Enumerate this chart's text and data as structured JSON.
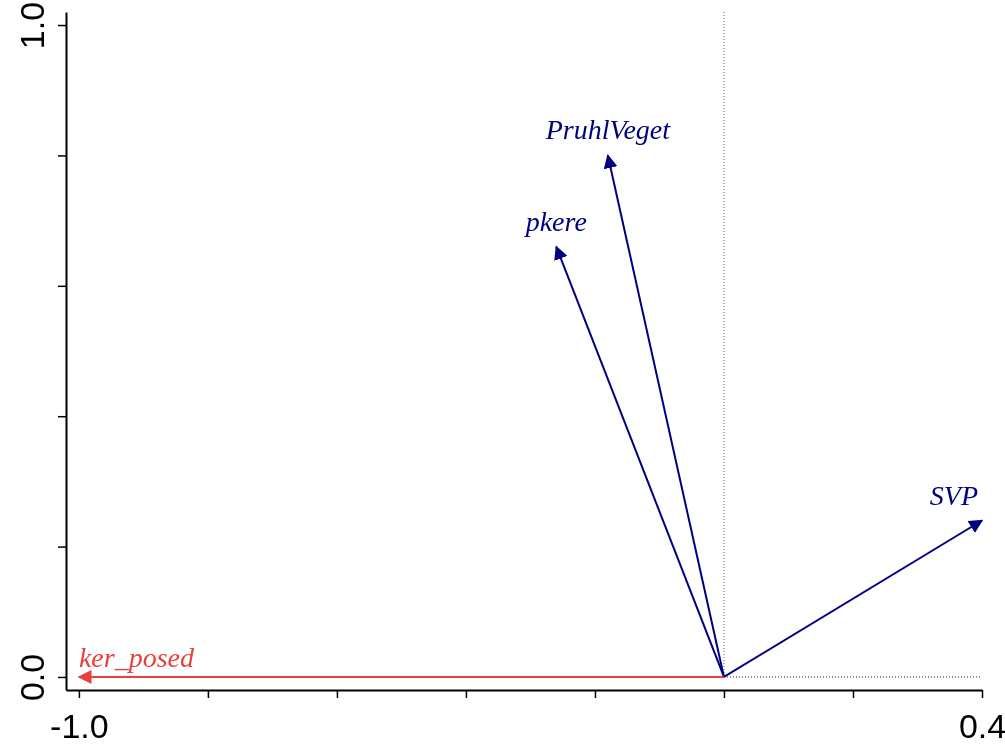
{
  "chart_data": {
    "type": "line",
    "xlim": [
      -1.02,
      0.4
    ],
    "ylim": [
      -0.02,
      1.02
    ],
    "xticks": [
      {
        "value": -1.0,
        "label": "-1.0"
      },
      {
        "value": -0.8,
        "label": null
      },
      {
        "value": -0.6,
        "label": null
      },
      {
        "value": -0.4,
        "label": null
      },
      {
        "value": -0.2,
        "label": null
      },
      {
        "value": 0,
        "label": null
      },
      {
        "value": 0.2,
        "label": null
      },
      {
        "value": 0.4,
        "label": "0.4"
      }
    ],
    "yticks": [
      {
        "value": 0,
        "label": "0.0"
      },
      {
        "value": 0.2,
        "label": null
      },
      {
        "value": 0.4,
        "label": null
      },
      {
        "value": 0.6,
        "label": null
      },
      {
        "value": 0.8,
        "label": null
      },
      {
        "value": 1,
        "label": "1.0"
      }
    ],
    "ref_lines": [
      {
        "axis": "x",
        "value": 0,
        "label": null,
        "color": "#666666",
        "line_style": "dotted"
      },
      {
        "axis": "y",
        "value": 0,
        "label": null,
        "color": "#222222",
        "line_style": "dotted"
      }
    ],
    "grid": false,
    "legend": false,
    "series": [
      {
        "name": "PruhlVeget",
        "color": "#000080",
        "x": [
          0,
          -0.18
        ],
        "values": [
          0,
          0.8
        ]
      },
      {
        "name": "pkere",
        "color": "#000080",
        "x": [
          0,
          -0.26
        ],
        "values": [
          0,
          0.66
        ]
      },
      {
        "name": "SVP",
        "color": "#000080",
        "x": [
          0,
          0.4
        ],
        "values": [
          0,
          0.24
        ]
      },
      {
        "name": "ker_posed",
        "color": "#e8403f",
        "x": [
          0,
          -1.0
        ],
        "values": [
          0,
          0
        ]
      }
    ]
  }
}
